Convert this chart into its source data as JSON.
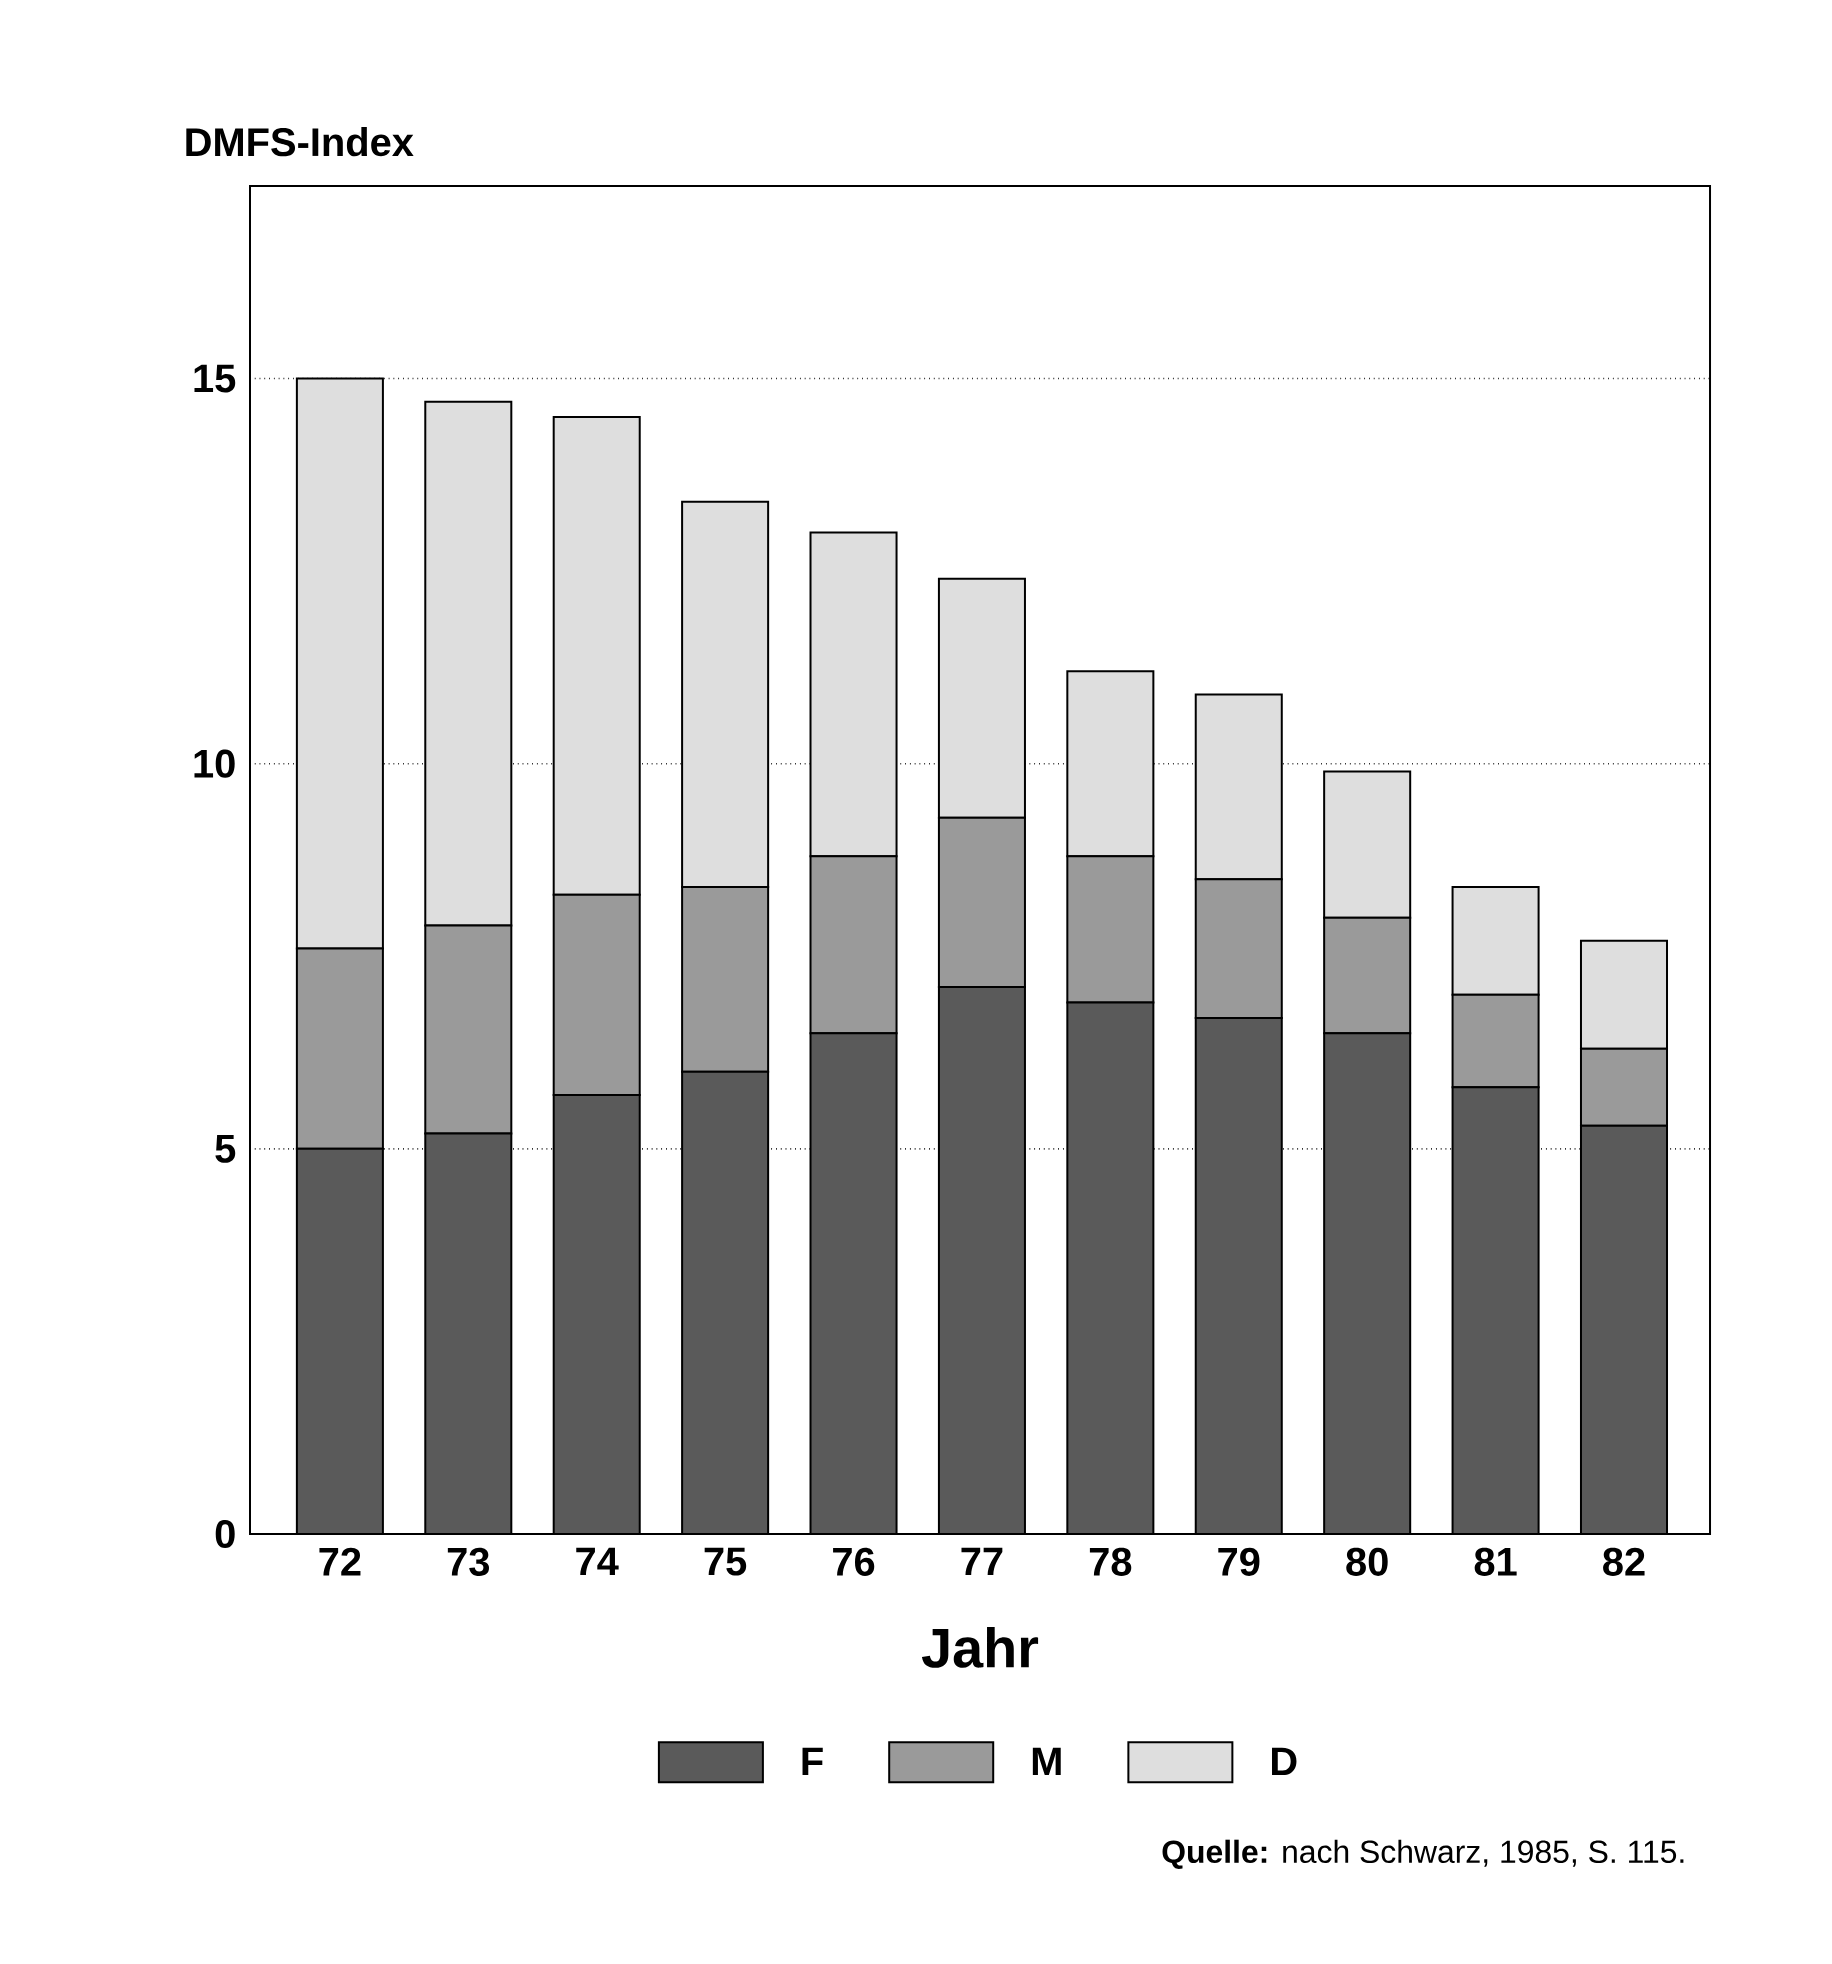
{
  "chart_data": {
    "type": "bar",
    "stacked": true,
    "ylabel": "DMFS-Index",
    "xlabel": "Jahr",
    "categories": [
      "72",
      "73",
      "74",
      "75",
      "76",
      "77",
      "78",
      "79",
      "80",
      "81",
      "82"
    ],
    "series": [
      {
        "name": "F",
        "color": "#5a5a5a",
        "values": [
          5.0,
          5.2,
          5.7,
          6.0,
          6.5,
          7.1,
          6.9,
          6.7,
          6.5,
          5.8,
          5.3
        ]
      },
      {
        "name": "M",
        "color": "#9a9a9a",
        "values": [
          2.6,
          2.7,
          2.6,
          2.4,
          2.3,
          2.2,
          1.9,
          1.8,
          1.5,
          1.2,
          1.0
        ]
      },
      {
        "name": "D",
        "color": "#dedede",
        "values": [
          7.4,
          6.8,
          6.2,
          5.0,
          4.2,
          3.1,
          2.4,
          2.4,
          1.9,
          1.4,
          1.4
        ]
      }
    ],
    "ylim": [
      0,
      17.5
    ],
    "yticks": [
      0,
      5,
      10,
      15
    ],
    "grid": "y",
    "legend": "bottom",
    "annotations": [
      "**Quelle:** nach Schwarz, 1985, S. 115."
    ]
  }
}
